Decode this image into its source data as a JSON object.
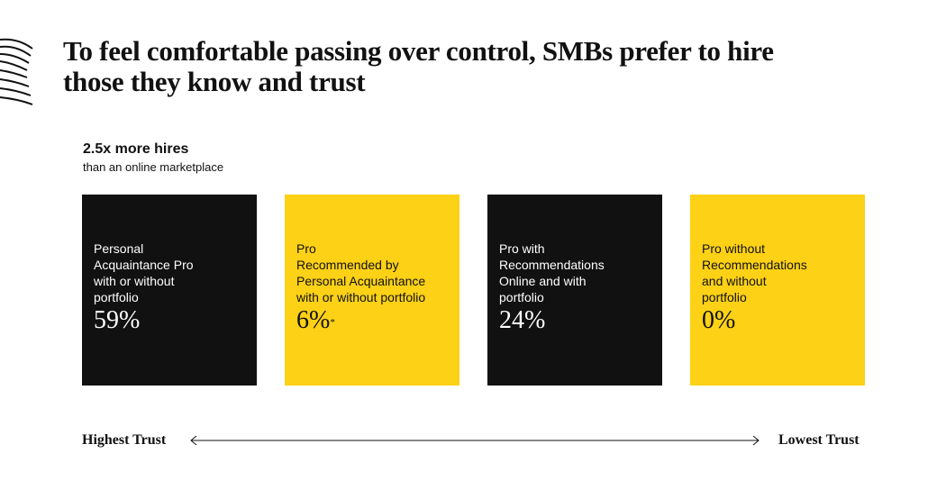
{
  "title": "To feel comfortable passing over control, SMBs prefer to hire those they know and trust",
  "callout": {
    "main": "2.5x more hires",
    "sub": "than an online marketplace"
  },
  "colors": {
    "dark": "#111111",
    "accent": "#fcd116",
    "text_light": "#ffffff"
  },
  "chart_data": {
    "type": "table",
    "title": "To feel comfortable passing over control, SMBs prefer to hire those they know and trust",
    "categories": [
      "Personal Acquaintance Pro with or without portfolio",
      "Pro Recommended by Personal Acquaintance with or without portfolio",
      "Pro with Recommendations Online and with portfolio",
      "Pro without Recommendations and without portfolio"
    ],
    "values": [
      59,
      6,
      24,
      0
    ],
    "unit": "%",
    "cards": [
      {
        "label_lines": [
          "Personal",
          "Acquaintance Pro",
          "with or without",
          "portfolio"
        ],
        "value": "59%",
        "note": "",
        "style": "dark"
      },
      {
        "label_lines": [
          "Pro",
          "Recommended by",
          "Personal Acquaintance",
          "with or without portfolio"
        ],
        "value": "6%",
        "note": "*",
        "style": "light"
      },
      {
        "label_lines": [
          "Pro with",
          "Recommendations",
          "Online and with",
          "portfolio"
        ],
        "value": "24%",
        "note": "",
        "style": "dark"
      },
      {
        "label_lines": [
          "Pro without",
          "Recommendations",
          "and without",
          "portfolio"
        ],
        "value": "0%",
        "note": "",
        "style": "light"
      }
    ],
    "scale": {
      "left_label": "Highest Trust",
      "right_label": "Lowest Trust"
    }
  }
}
